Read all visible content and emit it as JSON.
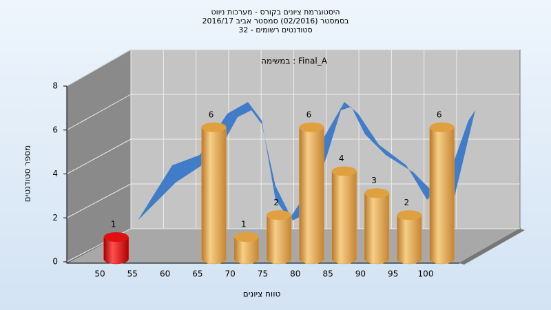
{
  "chart_data": {
    "type": "bar",
    "title": [
      "היסטוגרמת ציונים בקורס - מערכות ניווט",
      "בסמסטר (02/2016)  סמסטר אביב 2016/17",
      "סטודנטים רשומים - 32"
    ],
    "annotation": "במשימה : Final_A",
    "x_label": "טווח ציונים",
    "y_label": "מספר סטודנטים",
    "categories": [
      "50",
      "55",
      "60",
      "65",
      "70",
      "75",
      "80",
      "85",
      "90",
      "95",
      "100"
    ],
    "values": [
      1,
      0,
      0,
      6,
      1,
      2,
      6,
      4,
      3,
      2,
      6
    ],
    "colors": [
      "#e01010",
      "#e0a040",
      "#e0a040",
      "#e0a040",
      "#e0a040",
      "#e0a040",
      "#e0a040",
      "#e0a040",
      "#e0a040",
      "#e0a040",
      "#e0a040"
    ],
    "ylim": [
      0,
      8
    ],
    "yticks": [
      0,
      2,
      4,
      6,
      8
    ],
    "grid": true
  }
}
